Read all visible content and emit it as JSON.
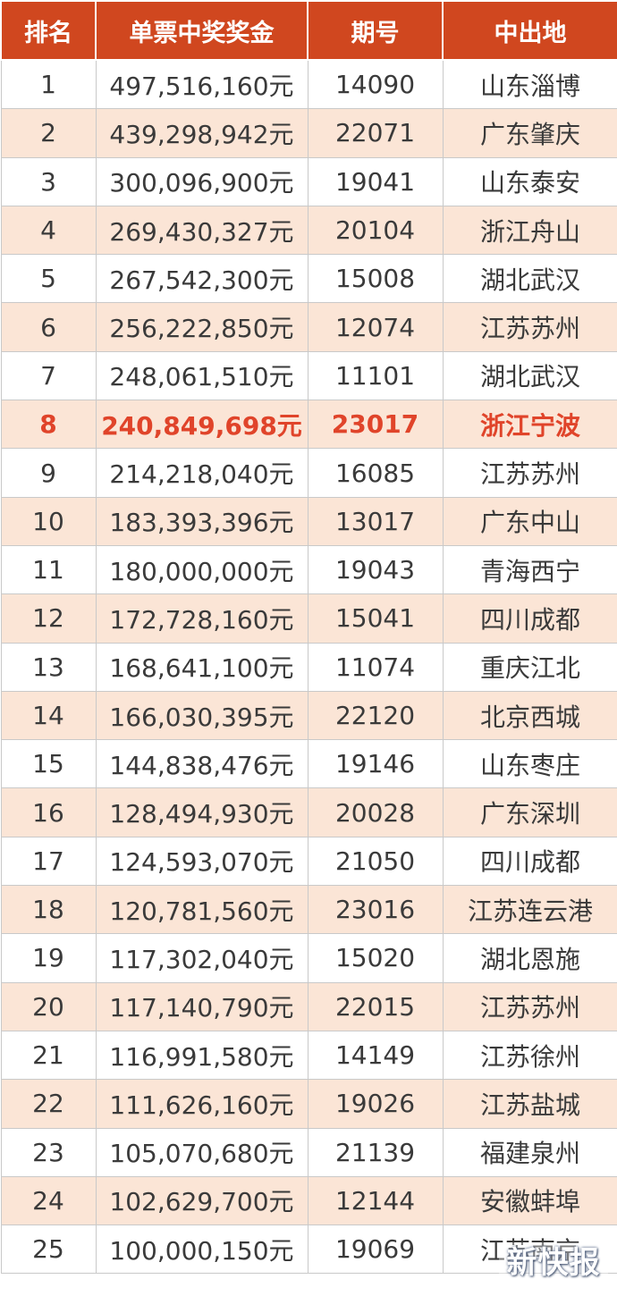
{
  "headers": {
    "rank": "排名",
    "prize": "单票中奖奖金",
    "issue": "期号",
    "location": "中出地"
  },
  "highlight_color": "#e0442a",
  "header_color": "#d0471f",
  "stripe_color": "#fbe5d6",
  "rows": [
    {
      "rank": "1",
      "prize": "497,516,160元",
      "issue": "14090",
      "location": "山东淄博"
    },
    {
      "rank": "2",
      "prize": "439,298,942元",
      "issue": "22071",
      "location": "广东肇庆"
    },
    {
      "rank": "3",
      "prize": "300,096,900元",
      "issue": "19041",
      "location": "山东泰安"
    },
    {
      "rank": "4",
      "prize": "269,430,327元",
      "issue": "20104",
      "location": "浙江舟山"
    },
    {
      "rank": "5",
      "prize": "267,542,300元",
      "issue": "15008",
      "location": "湖北武汉"
    },
    {
      "rank": "6",
      "prize": "256,222,850元",
      "issue": "12074",
      "location": "江苏苏州"
    },
    {
      "rank": "7",
      "prize": "248,061,510元",
      "issue": "11101",
      "location": "湖北武汉"
    },
    {
      "rank": "8",
      "prize": "240,849,698元",
      "issue": "23017",
      "location": "浙江宁波",
      "highlight": true
    },
    {
      "rank": "9",
      "prize": "214,218,040元",
      "issue": "16085",
      "location": "江苏苏州"
    },
    {
      "rank": "10",
      "prize": "183,393,396元",
      "issue": "13017",
      "location": "广东中山"
    },
    {
      "rank": "11",
      "prize": "180,000,000元",
      "issue": "19043",
      "location": "青海西宁"
    },
    {
      "rank": "12",
      "prize": "172,728,160元",
      "issue": "15041",
      "location": "四川成都"
    },
    {
      "rank": "13",
      "prize": "168,641,100元",
      "issue": "11074",
      "location": "重庆江北"
    },
    {
      "rank": "14",
      "prize": "166,030,395元",
      "issue": "22120",
      "location": "北京西城"
    },
    {
      "rank": "15",
      "prize": "144,838,476元",
      "issue": "19146",
      "location": "山东枣庄"
    },
    {
      "rank": "16",
      "prize": "128,494,930元",
      "issue": "20028",
      "location": "广东深圳"
    },
    {
      "rank": "17",
      "prize": "124,593,070元",
      "issue": "21050",
      "location": "四川成都"
    },
    {
      "rank": "18",
      "prize": "120,781,560元",
      "issue": "23016",
      "location": "江苏连云港"
    },
    {
      "rank": "19",
      "prize": "117,302,040元",
      "issue": "15020",
      "location": "湖北恩施"
    },
    {
      "rank": "20",
      "prize": "117,140,790元",
      "issue": "22015",
      "location": "江苏苏州"
    },
    {
      "rank": "21",
      "prize": "116,991,580元",
      "issue": "14149",
      "location": "江苏徐州"
    },
    {
      "rank": "22",
      "prize": "111,626,160元",
      "issue": "19026",
      "location": "江苏盐城"
    },
    {
      "rank": "23",
      "prize": "105,070,680元",
      "issue": "21139",
      "location": "福建泉州"
    },
    {
      "rank": "24",
      "prize": "102,629,700元",
      "issue": "12144",
      "location": "安徽蚌埠"
    },
    {
      "rank": "25",
      "prize": "100,000,150元",
      "issue": "19069",
      "location": "江苏南京"
    }
  ],
  "watermark": "新快报"
}
